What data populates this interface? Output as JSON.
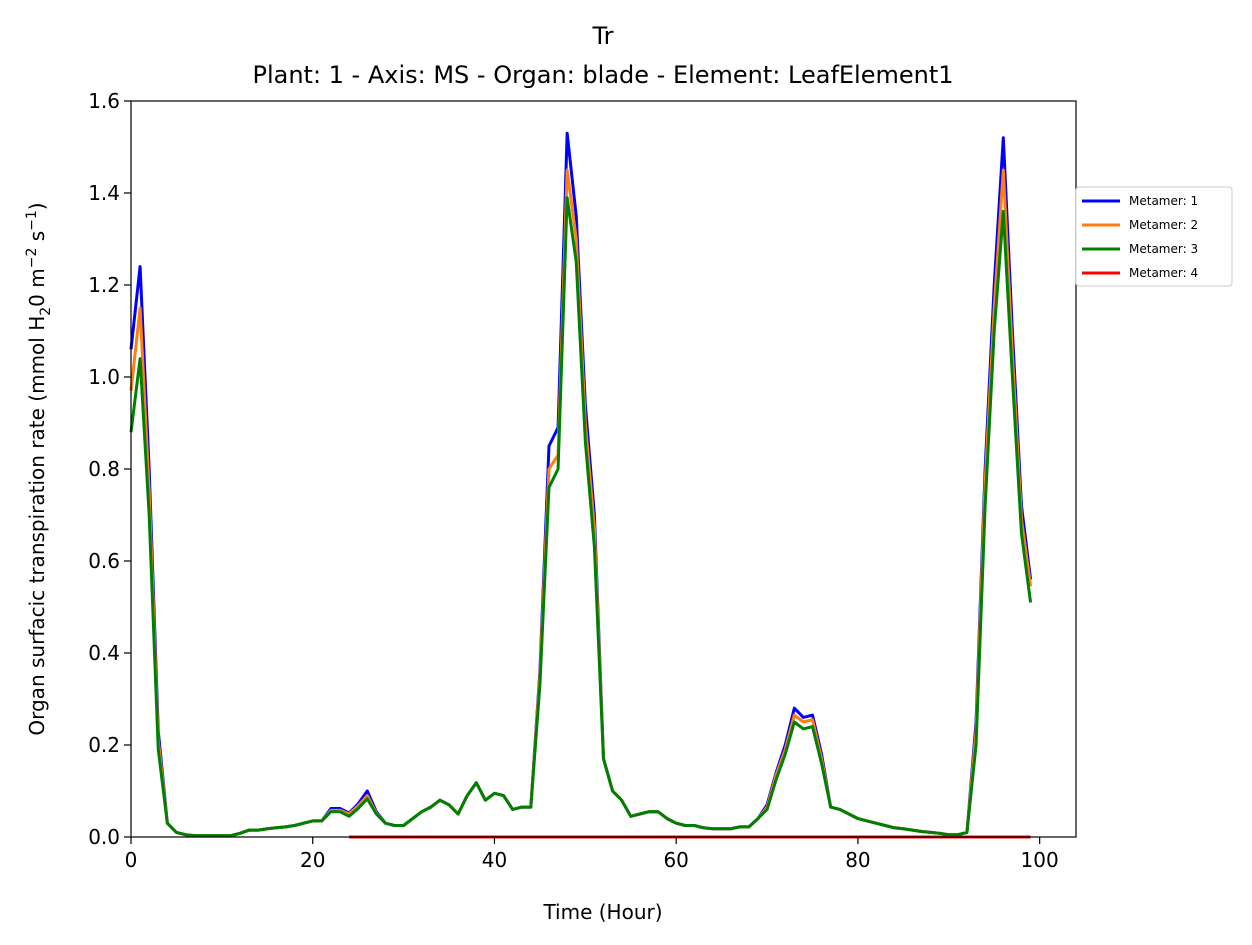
{
  "chart_data": {
    "type": "line",
    "title": "Tr",
    "subtitle": "Plant: 1 - Axis: MS - Organ: blade - Element: LeafElement1",
    "xlabel": "Time (Hour)",
    "ylabel_parts": [
      "Organ surfacic transpiration rate (mmol H",
      "2",
      "0 m",
      "−2",
      " s",
      "−1",
      ")"
    ],
    "xlim": [
      0,
      104
    ],
    "ylim": [
      0,
      1.6
    ],
    "xticks": [
      0,
      20,
      40,
      60,
      80,
      100
    ],
    "xtick_labels": [
      "0",
      "20",
      "40",
      "60",
      "80",
      "100"
    ],
    "yticks": [
      0.0,
      0.2,
      0.4,
      0.6,
      0.8,
      1.0,
      1.2,
      1.4,
      1.6
    ],
    "ytick_labels": [
      "0.0",
      "0.2",
      "0.4",
      "0.6",
      "0.8",
      "1.0",
      "1.2",
      "1.4",
      "1.6"
    ],
    "grid": false,
    "legend_position": "right, outside plot",
    "series": [
      {
        "name": "Metamer: 1",
        "color": "#0000ff",
        "x": [
          0,
          1,
          2,
          3,
          4,
          5,
          6,
          7,
          8,
          9,
          10,
          11,
          12,
          13,
          14,
          15,
          16,
          17,
          18,
          19,
          20,
          21,
          22,
          23,
          24,
          25,
          26,
          27,
          28,
          29,
          30,
          31,
          32,
          33,
          34,
          35,
          36,
          37,
          38,
          39,
          40,
          41,
          42,
          43,
          44,
          45,
          46,
          47,
          48,
          49,
          50,
          51,
          52,
          53,
          54,
          55,
          56,
          57,
          58,
          59,
          60,
          61,
          62,
          63,
          64,
          65,
          66,
          67,
          68,
          69,
          70,
          71,
          72,
          73,
          74,
          75,
          76,
          77,
          78,
          79,
          80,
          81,
          82,
          83,
          84,
          85,
          86,
          87,
          88,
          89,
          90,
          91,
          92,
          93,
          94,
          95,
          96,
          97,
          98,
          99
        ],
        "y": [
          1.06,
          1.24,
          0.8,
          0.23,
          0.03,
          0.01,
          0.005,
          0.003,
          0.003,
          0.003,
          0.003,
          0.003,
          0.008,
          0.015,
          0.015,
          0.018,
          0.02,
          0.022,
          0.025,
          0.03,
          0.035,
          0.035,
          0.062,
          0.062,
          0.052,
          0.072,
          0.1,
          0.055,
          0.03,
          0.025,
          0.025,
          0.04,
          0.055,
          0.065,
          0.08,
          0.07,
          0.05,
          0.09,
          0.118,
          0.08,
          0.095,
          0.09,
          0.06,
          0.065,
          0.065,
          0.36,
          0.85,
          0.89,
          1.53,
          1.35,
          0.94,
          0.7,
          0.17,
          0.1,
          0.08,
          0.045,
          0.05,
          0.055,
          0.055,
          0.04,
          0.03,
          0.025,
          0.025,
          0.02,
          0.018,
          0.018,
          0.018,
          0.022,
          0.022,
          0.04,
          0.07,
          0.14,
          0.2,
          0.28,
          0.26,
          0.265,
          0.18,
          0.065,
          0.06,
          0.05,
          0.04,
          0.035,
          0.03,
          0.025,
          0.02,
          0.018,
          0.015,
          0.012,
          0.01,
          0.008,
          0.005,
          0.005,
          0.01,
          0.25,
          0.8,
          1.2,
          1.52,
          1.1,
          0.72,
          0.56
        ]
      },
      {
        "name": "Metamer: 2",
        "color": "#ff7f0e",
        "x": [
          0,
          1,
          2,
          3,
          4,
          5,
          6,
          7,
          8,
          9,
          10,
          11,
          12,
          13,
          14,
          15,
          16,
          17,
          18,
          19,
          20,
          21,
          22,
          23,
          24,
          25,
          26,
          27,
          28,
          29,
          30,
          31,
          32,
          33,
          34,
          35,
          36,
          37,
          38,
          39,
          40,
          41,
          42,
          43,
          44,
          45,
          46,
          47,
          48,
          49,
          50,
          51,
          52,
          53,
          54,
          55,
          56,
          57,
          58,
          59,
          60,
          61,
          62,
          63,
          64,
          65,
          66,
          67,
          68,
          69,
          70,
          71,
          72,
          73,
          74,
          75,
          76,
          77,
          78,
          79,
          80,
          81,
          82,
          83,
          84,
          85,
          86,
          87,
          88,
          89,
          90,
          91,
          92,
          93,
          94,
          95,
          96,
          97,
          98,
          99
        ],
        "y": [
          0.97,
          1.15,
          0.75,
          0.21,
          0.03,
          0.01,
          0.005,
          0.003,
          0.003,
          0.003,
          0.003,
          0.003,
          0.008,
          0.015,
          0.015,
          0.018,
          0.02,
          0.022,
          0.025,
          0.03,
          0.035,
          0.035,
          0.058,
          0.058,
          0.05,
          0.068,
          0.09,
          0.052,
          0.03,
          0.025,
          0.025,
          0.04,
          0.055,
          0.065,
          0.08,
          0.07,
          0.05,
          0.09,
          0.118,
          0.08,
          0.095,
          0.09,
          0.06,
          0.065,
          0.065,
          0.35,
          0.8,
          0.83,
          1.45,
          1.3,
          0.9,
          0.67,
          0.17,
          0.1,
          0.08,
          0.045,
          0.05,
          0.055,
          0.055,
          0.04,
          0.03,
          0.025,
          0.025,
          0.02,
          0.018,
          0.018,
          0.018,
          0.022,
          0.022,
          0.04,
          0.065,
          0.135,
          0.19,
          0.265,
          0.25,
          0.255,
          0.17,
          0.065,
          0.06,
          0.05,
          0.04,
          0.035,
          0.03,
          0.025,
          0.02,
          0.018,
          0.015,
          0.012,
          0.01,
          0.008,
          0.005,
          0.005,
          0.01,
          0.23,
          0.77,
          1.15,
          1.45,
          1.05,
          0.69,
          0.545
        ]
      },
      {
        "name": "Metamer: 3",
        "color": "#008000",
        "x": [
          0,
          1,
          2,
          3,
          4,
          5,
          6,
          7,
          8,
          9,
          10,
          11,
          12,
          13,
          14,
          15,
          16,
          17,
          18,
          19,
          20,
          21,
          22,
          23,
          24,
          25,
          26,
          27,
          28,
          29,
          30,
          31,
          32,
          33,
          34,
          35,
          36,
          37,
          38,
          39,
          40,
          41,
          42,
          43,
          44,
          45,
          46,
          47,
          48,
          49,
          50,
          51,
          52,
          53,
          54,
          55,
          56,
          57,
          58,
          59,
          60,
          61,
          62,
          63,
          64,
          65,
          66,
          67,
          68,
          69,
          70,
          71,
          72,
          73,
          74,
          75,
          76,
          77,
          78,
          79,
          80,
          81,
          82,
          83,
          84,
          85,
          86,
          87,
          88,
          89,
          90,
          91,
          92,
          93,
          94,
          95,
          96,
          97,
          98,
          99
        ],
        "y": [
          0.88,
          1.04,
          0.7,
          0.19,
          0.03,
          0.01,
          0.005,
          0.003,
          0.003,
          0.003,
          0.003,
          0.003,
          0.008,
          0.015,
          0.015,
          0.018,
          0.02,
          0.022,
          0.025,
          0.03,
          0.035,
          0.035,
          0.055,
          0.055,
          0.045,
          0.062,
          0.083,
          0.05,
          0.03,
          0.025,
          0.025,
          0.04,
          0.055,
          0.065,
          0.08,
          0.07,
          0.05,
          0.09,
          0.118,
          0.08,
          0.095,
          0.09,
          0.06,
          0.065,
          0.065,
          0.33,
          0.76,
          0.8,
          1.39,
          1.25,
          0.86,
          0.63,
          0.17,
          0.1,
          0.08,
          0.045,
          0.05,
          0.055,
          0.055,
          0.04,
          0.03,
          0.025,
          0.025,
          0.02,
          0.018,
          0.018,
          0.018,
          0.022,
          0.022,
          0.04,
          0.06,
          0.125,
          0.18,
          0.25,
          0.235,
          0.24,
          0.16,
          0.065,
          0.06,
          0.05,
          0.04,
          0.035,
          0.03,
          0.025,
          0.02,
          0.018,
          0.015,
          0.012,
          0.01,
          0.008,
          0.005,
          0.005,
          0.01,
          0.2,
          0.72,
          1.1,
          1.36,
          1.0,
          0.66,
          0.51
        ]
      },
      {
        "name": "Metamer: 4",
        "color": "#ff0000",
        "x": [
          24,
          99
        ],
        "y": [
          0,
          0
        ]
      }
    ]
  }
}
